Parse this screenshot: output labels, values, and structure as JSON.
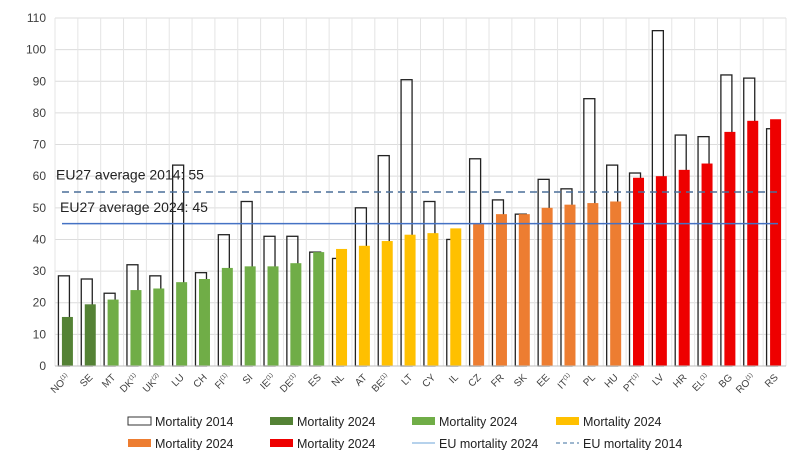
{
  "chart_data": {
    "type": "bar",
    "categories": [
      {
        "code": "NO",
        "note": "(1)"
      },
      {
        "code": "SE",
        "note": ""
      },
      {
        "code": "MT",
        "note": ""
      },
      {
        "code": "DK",
        "note": "(1)"
      },
      {
        "code": "UK",
        "note": "(2)"
      },
      {
        "code": "LU",
        "note": ""
      },
      {
        "code": "CH",
        "note": ""
      },
      {
        "code": "FI",
        "note": "(1)"
      },
      {
        "code": "SI",
        "note": ""
      },
      {
        "code": "IE",
        "note": "(1)"
      },
      {
        "code": "DE",
        "note": "(1)"
      },
      {
        "code": "ES",
        "note": ""
      },
      {
        "code": "NL",
        "note": ""
      },
      {
        "code": "AT",
        "note": ""
      },
      {
        "code": "BE",
        "note": "(1)"
      },
      {
        "code": "LT",
        "note": ""
      },
      {
        "code": "CY",
        "note": ""
      },
      {
        "code": "IL",
        "note": ""
      },
      {
        "code": "CZ",
        "note": ""
      },
      {
        "code": "FR",
        "note": ""
      },
      {
        "code": "SK",
        "note": ""
      },
      {
        "code": "EE",
        "note": ""
      },
      {
        "code": "IT",
        "note": "(1)"
      },
      {
        "code": "PL",
        "note": ""
      },
      {
        "code": "HU",
        "note": ""
      },
      {
        "code": "PT",
        "note": "(1)"
      },
      {
        "code": "LV",
        "note": ""
      },
      {
        "code": "HR",
        "note": ""
      },
      {
        "code": "EL",
        "note": "(1)"
      },
      {
        "code": "BG",
        "note": ""
      },
      {
        "code": "RO",
        "note": "(1)"
      },
      {
        "code": "RS",
        "note": ""
      }
    ],
    "series": [
      {
        "name": "Mortality 2014",
        "values": [
          28.5,
          27.5,
          23,
          32,
          28.5,
          63.5,
          29.5,
          41.5,
          52,
          41,
          41,
          36,
          34,
          50,
          66.5,
          90.5,
          52,
          40,
          65.5,
          52.5,
          48,
          59,
          56,
          84.5,
          63.5,
          61,
          106,
          73,
          72.5,
          92,
          91,
          75
        ]
      },
      {
        "name": "Mortality 2024",
        "values": [
          15.5,
          19.5,
          21,
          24,
          24.5,
          26.5,
          27.5,
          31,
          31.5,
          31.5,
          32.5,
          36,
          37,
          38,
          39.5,
          41.5,
          42,
          43.5,
          45,
          48,
          48,
          50,
          51,
          51.5,
          52,
          59.5,
          60,
          62,
          64,
          74,
          77.5,
          78
        ]
      }
    ],
    "groups": [
      0,
      0,
      1,
      1,
      1,
      1,
      1,
      1,
      1,
      1,
      1,
      1,
      2,
      2,
      2,
      2,
      2,
      2,
      3,
      3,
      3,
      3,
      3,
      3,
      3,
      4,
      4,
      4,
      4,
      4,
      4,
      4
    ],
    "group_colors": [
      "#548235",
      "#70ad47",
      "#ffc000",
      "#ed7d31",
      "#ee0000"
    ],
    "reference_lines": [
      {
        "label": "EU27 average 2014: 55",
        "value": 55,
        "style": "dashed",
        "color": "#4a6f99"
      },
      {
        "label": "EU27 average 2024: 45",
        "value": 45,
        "style": "solid",
        "color": "#4472c4"
      }
    ],
    "yticks": [
      "0",
      "10",
      "20",
      "30",
      "40",
      "50",
      "60",
      "70",
      "80",
      "90",
      "100",
      "110"
    ],
    "ylim": [
      0,
      110
    ],
    "grid": true,
    "legend_position": "bottom",
    "legend": [
      {
        "label": "Mortality 2014",
        "kind": "outline",
        "color": "#000000"
      },
      {
        "label": "Mortality 2024",
        "kind": "fill",
        "color": "#548235"
      },
      {
        "label": "Mortality 2024",
        "kind": "fill",
        "color": "#70ad47"
      },
      {
        "label": "Mortality 2024",
        "kind": "fill",
        "color": "#ffc000"
      },
      {
        "label": "Mortality 2024",
        "kind": "fill",
        "color": "#ed7d31"
      },
      {
        "label": "Mortality 2024",
        "kind": "fill",
        "color": "#ee0000"
      },
      {
        "label": "EU mortality 2024",
        "kind": "line",
        "color": "#9dc3e6"
      },
      {
        "label": "EU mortality 2014",
        "kind": "dash",
        "color": "#7f9fbf"
      }
    ]
  }
}
